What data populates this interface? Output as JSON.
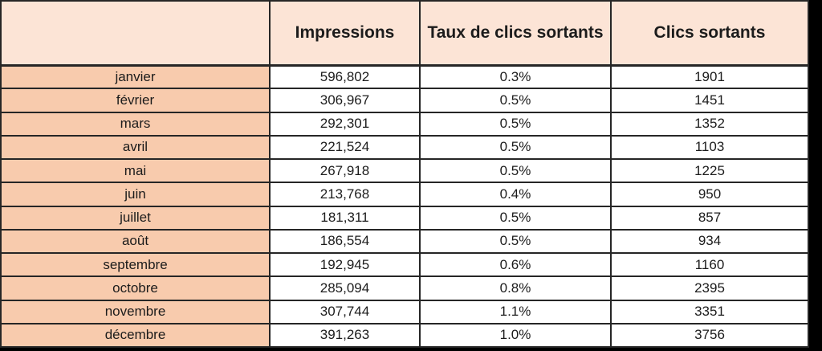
{
  "colors": {
    "header_bg": "#fce4d6",
    "row_label_bg": "#f8cbad",
    "cell_bg": "#ffffff",
    "border": "#262626",
    "text": "#1c1c1c",
    "canvas_bg": "#000000"
  },
  "table": {
    "headers": [
      "",
      "Impressions",
      "Taux de clics sortants",
      "Clics sortants"
    ],
    "rows": [
      {
        "month": "janvier",
        "impressions": "596,802",
        "ctr": "0.3%",
        "clicks": "1901"
      },
      {
        "month": "février",
        "impressions": "306,967",
        "ctr": "0.5%",
        "clicks": "1451"
      },
      {
        "month": "mars",
        "impressions": "292,301",
        "ctr": "0.5%",
        "clicks": "1352"
      },
      {
        "month": "avril",
        "impressions": "221,524",
        "ctr": "0.5%",
        "clicks": "1103"
      },
      {
        "month": "mai",
        "impressions": "267,918",
        "ctr": "0.5%",
        "clicks": "1225"
      },
      {
        "month": "juin",
        "impressions": "213,768",
        "ctr": "0.4%",
        "clicks": "950"
      },
      {
        "month": "juillet",
        "impressions": "181,311",
        "ctr": "0.5%",
        "clicks": "857"
      },
      {
        "month": "août",
        "impressions": "186,554",
        "ctr": "0.5%",
        "clicks": "934"
      },
      {
        "month": "septembre",
        "impressions": "192,945",
        "ctr": "0.6%",
        "clicks": "1160"
      },
      {
        "month": "octobre",
        "impressions": "285,094",
        "ctr": "0.8%",
        "clicks": "2395"
      },
      {
        "month": "novembre",
        "impressions": "307,744",
        "ctr": "1.1%",
        "clicks": "3351"
      },
      {
        "month": "décembre",
        "impressions": "391,263",
        "ctr": "1.0%",
        "clicks": "3756"
      }
    ]
  },
  "chart_data": {
    "type": "table",
    "columns": [
      "",
      "Impressions",
      "Taux de clics sortants",
      "Clics sortants"
    ],
    "rows": [
      [
        "janvier",
        596802,
        "0.3%",
        1901
      ],
      [
        "février",
        306967,
        "0.5%",
        1451
      ],
      [
        "mars",
        292301,
        "0.5%",
        1352
      ],
      [
        "avril",
        221524,
        "0.5%",
        1103
      ],
      [
        "mai",
        267918,
        "0.5%",
        1225
      ],
      [
        "juin",
        213768,
        "0.4%",
        950
      ],
      [
        "juillet",
        181311,
        "0.5%",
        857
      ],
      [
        "août",
        186554,
        "0.5%",
        934
      ],
      [
        "septembre",
        192945,
        "0.6%",
        1160
      ],
      [
        "octobre",
        285094,
        "0.8%",
        2395
      ],
      [
        "novembre",
        307744,
        "1.1%",
        3351
      ],
      [
        "décembre",
        391263,
        "1.0%",
        3756
      ]
    ]
  }
}
